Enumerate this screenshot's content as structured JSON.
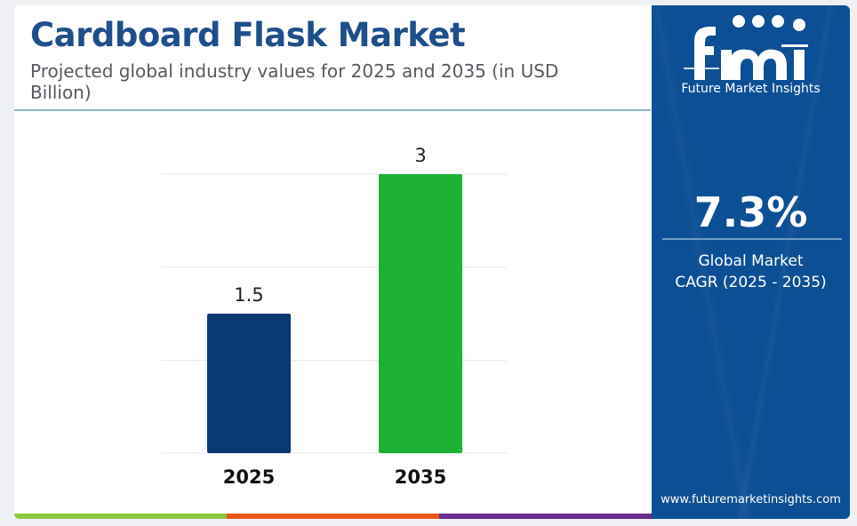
{
  "header": {
    "title": "Cardboard Flask Market",
    "subtitle": "Projected global industry values for 2025 and 2035 (in USD Billion)"
  },
  "chart_data": {
    "type": "bar",
    "categories": [
      "2025",
      "2035"
    ],
    "values": [
      1.5,
      3
    ],
    "data_labels": [
      "1.5",
      "3"
    ],
    "bar_colors": [
      "#0b3a72",
      "#1db233"
    ],
    "ylim": [
      0,
      3
    ],
    "grid": true,
    "legend": "none"
  },
  "sidebar": {
    "brand_name": "Future Market Insights",
    "cagr_value": "7.3%",
    "cagr_label_line1": "Global Market",
    "cagr_label_line2": "CAGR (2025 - 2035)",
    "website": "www.futuremarketinsights.com",
    "colors": {
      "background": "#0d4f94",
      "text": "#ffffff"
    }
  },
  "footer_colors": [
    "#8cc63f",
    "#e8581c",
    "#6a2c8e",
    "#0d4f94"
  ]
}
